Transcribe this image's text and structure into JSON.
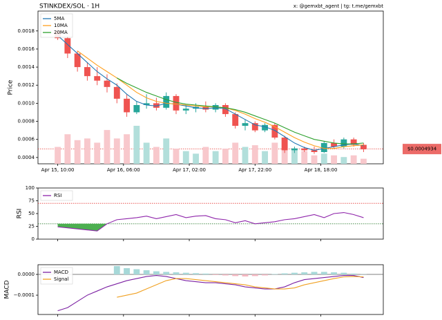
{
  "header_right": "x: @gemxbt_agent | tg: t.me/gemxbt",
  "chart_data": [
    {
      "type": "candlestick",
      "title": "STINKDEX/SOL · 1H",
      "y_label": "Price",
      "x": [
        "Apr 15, 10:00",
        "Apr 15, 13:00",
        "Apr 15, 16:00",
        "Apr 15, 19:00",
        "Apr 15, 22:00",
        "Apr 16, 01:00",
        "Apr 16, 04:00",
        "Apr 16, 07:00",
        "Apr 16, 10:00",
        "Apr 16, 13:00",
        "Apr 16, 16:00",
        "Apr 16, 19:00",
        "Apr 16, 22:00",
        "Apr 17, 01:00",
        "Apr 17, 04:00",
        "Apr 17, 07:00",
        "Apr 17, 10:00",
        "Apr 17, 13:00",
        "Apr 17, 16:00",
        "Apr 17, 19:00",
        "Apr 17, 22:00",
        "Apr 18, 01:00",
        "Apr 18, 04:00",
        "Apr 18, 07:00",
        "Apr 18, 10:00",
        "Apr 18, 13:00",
        "Apr 18, 16:00",
        "Apr 18, 19:00",
        "Apr 18, 22:00",
        "Apr 19, 01:00",
        "Apr 19, 04:00",
        "Apr 19, 07:00"
      ],
      "open": [
        0.0018,
        0.00172,
        0.00155,
        0.0014,
        0.0013,
        0.00125,
        0.00118,
        0.00105,
        0.0009,
        0.00098,
        0.001,
        0.00095,
        0.00108,
        0.00092,
        0.00094,
        0.00096,
        0.00093,
        0.00098,
        0.00088,
        0.00075,
        0.00078,
        0.0007,
        0.00076,
        0.00062,
        0.00048,
        0.0005,
        0.00048,
        0.00046,
        0.00056,
        0.00052,
        0.0006,
        0.00054
      ],
      "high": [
        0.00185,
        0.00174,
        0.00158,
        0.00145,
        0.0014,
        0.00132,
        0.00122,
        0.0011,
        0.00102,
        0.0011,
        0.00106,
        0.00112,
        0.0011,
        0.00098,
        0.001,
        0.00102,
        0.001,
        0.001,
        0.0009,
        0.00082,
        0.0008,
        0.00078,
        0.00078,
        0.00064,
        0.00052,
        0.00052,
        0.00052,
        0.00058,
        0.0006,
        0.00062,
        0.00062,
        0.00056
      ],
      "low": [
        0.0017,
        0.0015,
        0.00135,
        0.00125,
        0.0012,
        0.00112,
        0.001,
        0.00085,
        0.00088,
        0.00094,
        0.00092,
        0.00093,
        0.00088,
        0.00088,
        0.0009,
        0.0009,
        0.0009,
        0.00085,
        0.00072,
        0.0007,
        0.00068,
        0.00068,
        0.0006,
        0.00045,
        0.00045,
        0.00046,
        0.00044,
        0.00045,
        0.0005,
        0.0005,
        0.00052,
        0.00046
      ],
      "close": [
        0.00172,
        0.00155,
        0.0014,
        0.0013,
        0.00125,
        0.00118,
        0.00105,
        0.0009,
        0.00098,
        0.001,
        0.00095,
        0.00108,
        0.00092,
        0.00094,
        0.00096,
        0.00093,
        0.00098,
        0.00088,
        0.00075,
        0.00078,
        0.0007,
        0.00076,
        0.00062,
        0.00048,
        0.0005,
        0.00048,
        0.00046,
        0.00056,
        0.00052,
        0.0006,
        0.00054,
        0.00049
      ],
      "volume": [
        20,
        35,
        28,
        30,
        25,
        40,
        30,
        35,
        45,
        25,
        20,
        30,
        18,
        15,
        12,
        20,
        15,
        18,
        25,
        20,
        22,
        15,
        25,
        30,
        18,
        15,
        10,
        12,
        10,
        8,
        10,
        6
      ],
      "up_color": "#26a69a",
      "down_color": "#ef5350",
      "volume_up_color": "#b2dfdb",
      "volume_down_color": "#f8c8cc",
      "series": [
        {
          "name": "5MA",
          "color": "#1f77b4",
          "values": [
            0.00175,
            0.00165,
            0.00155,
            0.00145,
            0.00135,
            0.00127,
            0.0012,
            0.0011,
            0.00102,
            0.00098,
            0.00097,
            0.001,
            0.00099,
            0.00097,
            0.00095,
            0.00094,
            0.00095,
            0.00094,
            0.00088,
            0.00082,
            0.00076,
            0.00074,
            0.0007,
            0.00063,
            0.00056,
            0.00051,
            0.00048,
            0.0005,
            0.00052,
            0.00054,
            0.00055,
            0.00053
          ]
        },
        {
          "name": "10MA",
          "color": "#ff9f1c",
          "values": [
            null,
            null,
            0.00158,
            0.0015,
            0.00142,
            0.00135,
            0.00128,
            0.0012,
            0.00112,
            0.00106,
            0.00102,
            0.001,
            0.00099,
            0.00098,
            0.00097,
            0.00096,
            0.00096,
            0.00095,
            0.00092,
            0.00088,
            0.00083,
            0.00079,
            0.00074,
            0.00068,
            0.00062,
            0.00057,
            0.00053,
            0.0005,
            0.0005,
            0.00052,
            0.00053,
            0.00054
          ]
        },
        {
          "name": "20MA",
          "color": "#2ca02c",
          "values": [
            null,
            null,
            null,
            null,
            null,
            null,
            0.00128,
            0.00122,
            0.00117,
            0.00112,
            0.00108,
            0.00104,
            0.00101,
            0.00099,
            0.00098,
            0.00097,
            0.00096,
            0.00095,
            0.00093,
            0.0009,
            0.00086,
            0.00082,
            0.00078,
            0.00073,
            0.00068,
            0.00064,
            0.0006,
            0.00058,
            0.00056,
            0.00055,
            0.00055,
            0.00056
          ]
        }
      ],
      "xlim": [
        "Apr 15, 04:00",
        "Apr 19, 13:00"
      ],
      "xticks": [
        "Apr 15, 10:00",
        "Apr 16, 06:00",
        "Apr 17, 02:00",
        "Apr 17, 22:00",
        "Apr 18, 18:00"
      ],
      "ylim": [
        0.00033,
        0.00202
      ],
      "yticks": [
        0.0004,
        0.0006,
        0.0008,
        {
          "value": 0.001,
          "label": "0.0010"
        },
        0.0012,
        0.0014,
        0.0016,
        0.0018
      ],
      "ref_lines": [
        {
          "value": 0.0004934,
          "label": "$0.0004934",
          "color": "#e53935"
        }
      ]
    },
    {
      "type": "line",
      "y_label": "RSI",
      "series": [
        {
          "name": "RSI",
          "color": "#8e24aa",
          "values": [
            24,
            22,
            20,
            18,
            16,
            30,
            38,
            40,
            42,
            45,
            40,
            44,
            48,
            42,
            45,
            46,
            40,
            38,
            32,
            36,
            30,
            32,
            34,
            38,
            40,
            44,
            48,
            42,
            50,
            52,
            48,
            42
          ]
        }
      ],
      "ylim": [
        0,
        100
      ],
      "yticks": [
        0,
        25,
        50,
        75,
        100
      ],
      "ref_lines": [
        {
          "value": 70,
          "color": "#e53935"
        },
        {
          "value": 30,
          "color": "#2e7d32"
        }
      ],
      "oversold_fill": "#4caf50"
    },
    {
      "type": "line",
      "y_label": "MACD",
      "histogram": [
        null,
        null,
        null,
        null,
        null,
        null,
        4e-05,
        3e-05,
        2.5e-05,
        2e-05,
        1.5e-05,
        1.2e-05,
        1e-05,
        8e-06,
        6e-06,
        4e-06,
        -3e-06,
        -5e-06,
        -8e-06,
        -1e-05,
        -8e-06,
        -5e-06,
        2e-06,
        5e-06,
        8e-06,
        1e-05,
        1.2e-05,
        1.2e-05,
        1e-05,
        8e-06,
        4e-06,
        1e-06
      ],
      "hist_up_color": "#a6d8d8",
      "hist_down_color": "#f4b6c0",
      "series": [
        {
          "name": "MACD",
          "color": "#7b1fa2",
          "values": [
            -0.000175,
            -0.00016,
            -0.00013,
            -0.0001,
            -8e-05,
            -6e-05,
            -4.5e-05,
            -3e-05,
            -2e-05,
            -1e-05,
            -5e-06,
            -1e-05,
            -2e-05,
            -3e-05,
            -3.5e-05,
            -4e-05,
            -4e-05,
            -4.5e-05,
            -5e-05,
            -6e-05,
            -6.5e-05,
            -7e-05,
            -7e-05,
            -6e-05,
            -4e-05,
            -2.5e-05,
            -2e-05,
            -1.5e-05,
            -1e-05,
            -5e-06,
            -5e-06,
            -1.5e-05
          ]
        },
        {
          "name": "Signal",
          "color": "#f0a020",
          "values": [
            null,
            null,
            null,
            null,
            null,
            null,
            -0.00011,
            -0.0001,
            -9e-05,
            -7e-05,
            -5e-05,
            -3e-05,
            -2e-05,
            -2e-05,
            -2.5e-05,
            -3e-05,
            -3.5e-05,
            -4e-05,
            -4.5e-05,
            -5e-05,
            -6e-05,
            -6.5e-05,
            -7e-05,
            -7e-05,
            -6.5e-05,
            -5e-05,
            -4e-05,
            -3e-05,
            -2e-05,
            -1.2e-05,
            -1e-05,
            -1.2e-05
          ]
        }
      ],
      "ylim": [
        -0.000193,
        4.67e-05
      ],
      "yticks": [
        {
          "value": 0,
          "label": "0.0000"
        },
        {
          "value": -0.0001,
          "label": "−0.0001"
        }
      ],
      "ref_lines": [
        {
          "value": 0,
          "color": "#555555"
        }
      ]
    }
  ]
}
